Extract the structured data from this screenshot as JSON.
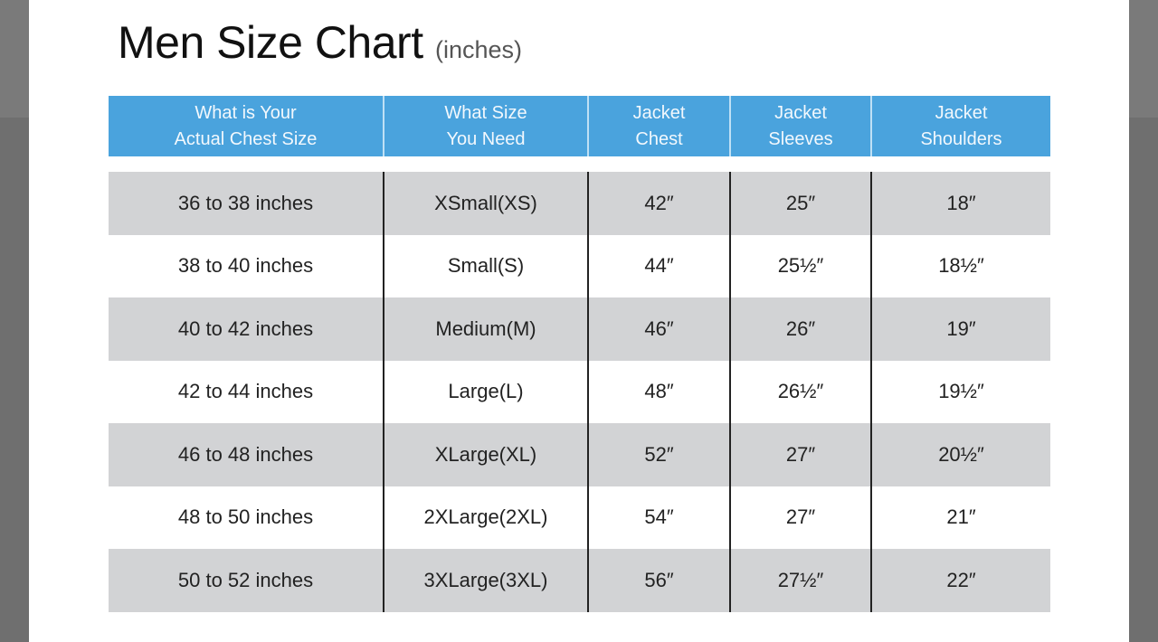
{
  "title": "Men Size Chart",
  "title_unit": "(inches)",
  "colors": {
    "header": "#4aa3dd",
    "row_alt": "#d2d3d5",
    "backdrop": "#6f6f6f"
  },
  "headers": [
    "What is Your\nActual Chest Size",
    "What Size\nYou Need",
    "Jacket\nChest",
    "Jacket\nSleeves",
    "Jacket\nShoulders"
  ],
  "rows": [
    [
      "36 to 38 inches",
      "XSmall(XS)",
      "42″",
      "25″",
      "18″"
    ],
    [
      "38 to 40 inches",
      "Small(S)",
      "44″",
      "25½″",
      "18½″"
    ],
    [
      "40 to 42 inches",
      "Medium(M)",
      "46″",
      "26″",
      "19″"
    ],
    [
      "42 to 44 inches",
      "Large(L)",
      "48″",
      "26½″",
      "19½″"
    ],
    [
      "46 to 48 inches",
      "XLarge(XL)",
      "52″",
      "27″",
      "20½″"
    ],
    [
      "48 to 50 inches",
      "2XLarge(2XL)",
      "54″",
      "27″",
      "21″"
    ],
    [
      "50 to 52 inches",
      "3XLarge(3XL)",
      "56″",
      "27½″",
      "22″"
    ]
  ]
}
